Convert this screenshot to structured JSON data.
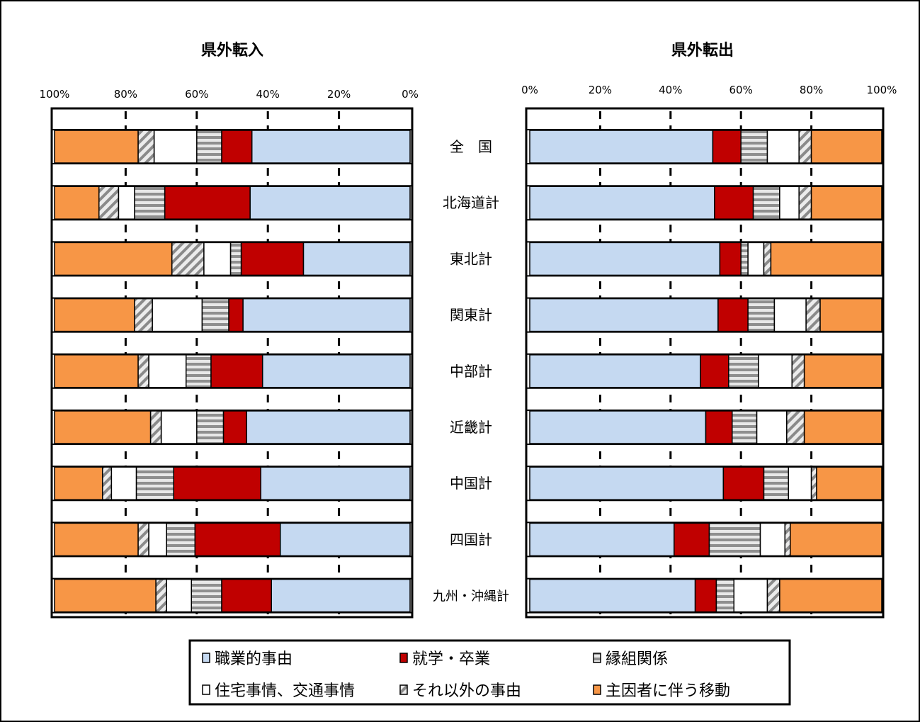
{
  "chart_data": [
    {
      "type": "bar",
      "orientation": "horizontal",
      "stacked": "percent",
      "direction": "right-to-left",
      "title": "県外転入",
      "categories": [
        "全　国",
        "北海道計",
        "東北計",
        "関東計",
        "中部計",
        "近畿計",
        "中国計",
        "四国計",
        "九州・沖縄計"
      ],
      "tick_labels": [
        "100%",
        "80%",
        "60%",
        "40%",
        "20%",
        "0%"
      ],
      "xlim": [
        0,
        100
      ],
      "grid": true,
      "series": [
        {
          "name": "職業的事由",
          "values": [
            44.5,
            45,
            30,
            47,
            41.5,
            46,
            42,
            36.5,
            39
          ]
        },
        {
          "name": "就学・卒業",
          "values": [
            8.5,
            24,
            17.5,
            4,
            14.5,
            6.5,
            24.5,
            24,
            14
          ]
        },
        {
          "name": "縁組関係",
          "values": [
            7,
            8.5,
            3,
            7.5,
            7,
            7.5,
            10.5,
            8,
            8.5
          ]
        },
        {
          "name": "住宅事情、交通事情",
          "values": [
            12,
            4.5,
            7.5,
            14,
            10.5,
            10,
            7,
            5,
            7
          ]
        },
        {
          "name": "それ以外の事由",
          "values": [
            4.5,
            5.5,
            9,
            5,
            3,
            3,
            2.5,
            3,
            3
          ]
        },
        {
          "name": "主因者に伴う移動",
          "values": [
            23.5,
            12.5,
            33,
            22.5,
            23.5,
            27,
            13.5,
            23.5,
            28.5
          ]
        }
      ]
    },
    {
      "type": "bar",
      "orientation": "horizontal",
      "stacked": "percent",
      "direction": "left-to-right",
      "title": "県外転出",
      "categories": [
        "全　国",
        "北海道計",
        "東北計",
        "関東計",
        "中部計",
        "近畿計",
        "中国計",
        "四国計",
        "九州・沖縄計"
      ],
      "tick_labels": [
        "0%",
        "20%",
        "40%",
        "60%",
        "80%",
        "100%"
      ],
      "xlim": [
        0,
        100
      ],
      "grid": true,
      "series": [
        {
          "name": "職業的事由",
          "values": [
            52,
            52.5,
            54,
            53.5,
            48.5,
            50,
            55,
            41,
            47
          ]
        },
        {
          "name": "就学・卒業",
          "values": [
            8,
            11,
            6,
            8.5,
            8,
            7.5,
            11.5,
            10,
            6
          ]
        },
        {
          "name": "縁組関係",
          "values": [
            7.5,
            7.5,
            2,
            7.5,
            8.5,
            7,
            7,
            14.5,
            5
          ]
        },
        {
          "name": "住宅事情、交通事情",
          "values": [
            9,
            5.5,
            4.5,
            9,
            9.5,
            8.5,
            6.5,
            7,
            9.5
          ]
        },
        {
          "name": "それ以外の事由",
          "values": [
            3.5,
            3.5,
            2,
            4,
            3.5,
            5,
            1.5,
            1.5,
            3.5
          ]
        },
        {
          "name": "主因者に伴う移動",
          "values": [
            20,
            20,
            31.5,
            17.5,
            22,
            22,
            18.5,
            26,
            29
          ]
        }
      ]
    }
  ],
  "legend": {
    "items": [
      {
        "label": "職業的事由",
        "color": "#c5d9f1",
        "pattern": "solid"
      },
      {
        "label": "就学・卒業",
        "color": "#c00000",
        "pattern": "solid"
      },
      {
        "label": "縁組関係",
        "color": "#a6a6a6",
        "pattern": "horizontal-stripes"
      },
      {
        "label": "住宅事情、交通事情",
        "color": "#ffffff",
        "pattern": "solid"
      },
      {
        "label": "それ以外の事由",
        "color": "#a6a6a6",
        "pattern": "diagonal-stripes"
      },
      {
        "label": "主因者に伴う移動",
        "color": "#f79646",
        "pattern": "solid"
      }
    ]
  }
}
